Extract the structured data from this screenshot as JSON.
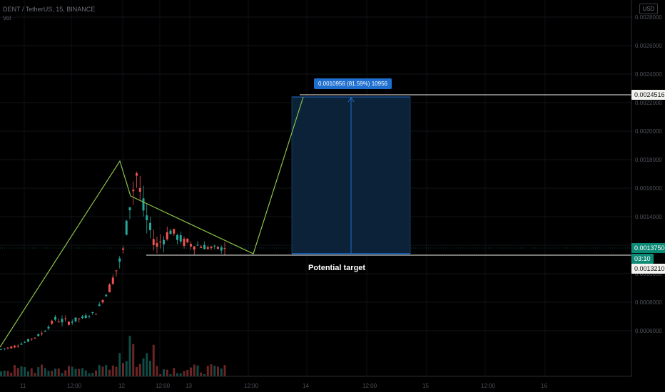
{
  "header": {
    "symbol": "DENT / TetherUS, 15, BINANCE",
    "volume_label": "Vol"
  },
  "settings_label": "USD",
  "price_tags": {
    "upper": "0.0024516",
    "current": "0.0013750",
    "countdown": "03:10",
    "lower": "0.0013210"
  },
  "measure_label": "0.0010956 (81.59%) 10956",
  "annotation_text": "Potential target",
  "colors": {
    "up": "#26a69a",
    "down": "#ef5350",
    "pattern_line": "#8bc34a",
    "target_box": "#0b2238",
    "measure_blue": "#1f6fd0"
  },
  "chart_data": {
    "type": "candlestick",
    "title": "",
    "symbol": "DENT / TetherUS",
    "interval": "15",
    "exchange": "BINANCE",
    "y_ticks": [
      "0.0028000",
      "0.0026000",
      "0.0024000",
      "0.0022000",
      "0.0020000",
      "0.0018000",
      "0.0016000",
      "0.0014000",
      "0.0012000",
      "0.0010000",
      "0.0008000",
      "0.0006000"
    ],
    "x_ticks": [
      "11",
      "12:00",
      "12",
      "12:00",
      "13",
      "12:00",
      "14",
      "12:00",
      "15",
      "12:00",
      "16"
    ],
    "ylim": [
      0.0005,
      0.0029
    ],
    "current_price": 0.001375,
    "support_price": 0.001321,
    "target_price": 0.0024516,
    "measured_move": {
      "change": 0.0010956,
      "percent": 81.59,
      "ticks": 10956
    },
    "pattern": "bull pennant",
    "candles_approx": [
      {
        "i": 0,
        "o": 0.00066,
        "h": 0.00068,
        "l": 0.00065,
        "c": 0.00067
      },
      {
        "i": 4,
        "o": 0.00067,
        "h": 0.0007,
        "l": 0.00066,
        "c": 0.00069
      },
      {
        "i": 8,
        "o": 0.00069,
        "h": 0.00074,
        "l": 0.00068,
        "c": 0.00073
      },
      {
        "i": 12,
        "o": 0.00073,
        "h": 0.0008,
        "l": 0.00071,
        "c": 0.00078
      },
      {
        "i": 16,
        "o": 0.00078,
        "h": 0.0009,
        "l": 0.00076,
        "c": 0.00088
      },
      {
        "i": 20,
        "o": 0.00088,
        "h": 0.00095,
        "l": 0.00084,
        "c": 0.00086
      },
      {
        "i": 24,
        "o": 0.00086,
        "h": 0.00091,
        "l": 0.00083,
        "c": 0.00089
      },
      {
        "i": 28,
        "o": 0.00089,
        "h": 0.00096,
        "l": 0.00086,
        "c": 0.00093
      },
      {
        "i": 32,
        "o": 0.00093,
        "h": 0.00115,
        "l": 0.00091,
        "c": 0.0011
      },
      {
        "i": 36,
        "o": 0.0011,
        "h": 0.0014,
        "l": 0.00105,
        "c": 0.00135
      },
      {
        "i": 38,
        "o": 0.00135,
        "h": 0.0018,
        "l": 0.0013,
        "c": 0.0017
      },
      {
        "i": 40,
        "o": 0.0017,
        "h": 0.00205,
        "l": 0.0016,
        "c": 0.0019
      },
      {
        "i": 42,
        "o": 0.0019,
        "h": 0.00198,
        "l": 0.0015,
        "c": 0.00165
      },
      {
        "i": 44,
        "o": 0.00165,
        "h": 0.00178,
        "l": 0.00145,
        "c": 0.0015
      },
      {
        "i": 46,
        "o": 0.0015,
        "h": 0.0016,
        "l": 0.00132,
        "c": 0.0014
      },
      {
        "i": 50,
        "o": 0.0014,
        "h": 0.00156,
        "l": 0.00135,
        "c": 0.0015
      },
      {
        "i": 54,
        "o": 0.0015,
        "h": 0.0016,
        "l": 0.00138,
        "c": 0.00142
      },
      {
        "i": 58,
        "o": 0.00142,
        "h": 0.0015,
        "l": 0.00136,
        "c": 0.0014
      },
      {
        "i": 62,
        "o": 0.0014,
        "h": 0.00146,
        "l": 0.00135,
        "c": 0.00138
      },
      {
        "i": 66,
        "o": 0.00138,
        "h": 0.00142,
        "l": 0.00133,
        "c": 0.001375
      }
    ]
  }
}
